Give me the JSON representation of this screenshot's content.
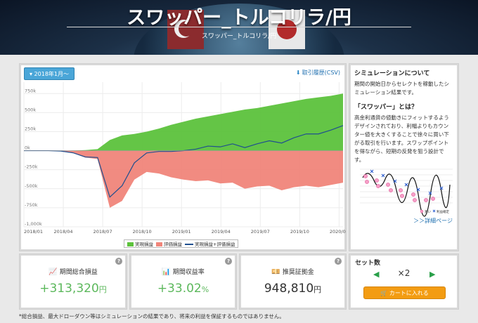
{
  "header": {
    "title": "スワッパー_トルコリラ/円",
    "subtitle": "スワッパー_トルコリラ/円"
  },
  "chart_panel": {
    "period_button": "2018年1月〜",
    "csv_link": "取引履歴(CSV)"
  },
  "chart_data": {
    "type": "area",
    "title": "",
    "y_ticks": [
      "750k",
      "500k",
      "250k",
      "0k",
      "-250k",
      "-500k",
      "-750k",
      "-1,000k"
    ],
    "x_ticks": [
      "2018/01",
      "2018/04",
      "2018/07",
      "2018/10",
      "2019/01",
      "2019/04",
      "2019/07",
      "2019/10",
      "2020/01"
    ],
    "ylim": [
      -1000000,
      900000
    ],
    "x": [
      "2018/01",
      "2018/02",
      "2018/03",
      "2018/04",
      "2018/05",
      "2018/06",
      "2018/07",
      "2018/08",
      "2018/08",
      "2018/09",
      "2018/10",
      "2018/11",
      "2018/12",
      "2019/01",
      "2019/02",
      "2019/03",
      "2019/04",
      "2019/05",
      "2019/06",
      "2019/07",
      "2019/08",
      "2019/09",
      "2019/10",
      "2019/11",
      "2019/12",
      "2020/01",
      "2020/02"
    ],
    "series": [
      {
        "name": "実現損益",
        "color": "#5cc23c",
        "values": [
          0,
          0,
          0,
          0,
          2000,
          8000,
          20000,
          140000,
          200000,
          220000,
          250000,
          290000,
          340000,
          380000,
          420000,
          450000,
          480000,
          510000,
          540000,
          560000,
          590000,
          620000,
          650000,
          680000,
          700000,
          720000,
          750000
        ]
      },
      {
        "name": "評価損益",
        "color": "#f0857a",
        "values": [
          0,
          0,
          0,
          -5000,
          -30000,
          -90000,
          -110000,
          -750000,
          -660000,
          -380000,
          -280000,
          -300000,
          -350000,
          -380000,
          -400000,
          -390000,
          -430000,
          -420000,
          -500000,
          -470000,
          -460000,
          -520000,
          -480000,
          -460000,
          -480000,
          -450000,
          -420000
        ]
      },
      {
        "name": "実現損益+評価損益",
        "color": "#1f4f8f",
        "values": [
          0,
          0,
          0,
          -5000,
          -28000,
          -82000,
          -90000,
          -610000,
          -460000,
          -160000,
          -30000,
          -10000,
          -10000,
          0,
          20000,
          60000,
          50000,
          90000,
          40000,
          90000,
          130000,
          100000,
          170000,
          220000,
          220000,
          270000,
          330000
        ]
      }
    ]
  },
  "info": {
    "title": "シミュレーションについて",
    "text": "期間の開始日からセレクトを稼動したシミュレーション結果です。",
    "sub_title": "「スワッパー」とは？",
    "sub_text": "高金利通貨の値動きにフィットするようデザインされており、利幅よりもカウンター値を大きくすることで徐々に買い下がる取引を行います。スワップポイントを得ながら、短期の反発を狙う設計です。",
    "mini_legend_buy": "買い",
    "mini_legend_sell": "利益確定",
    "detail_link": "＞＞詳細ページ"
  },
  "stats": [
    {
      "label": "期間総合損益",
      "value": "+313,320",
      "unit": "円"
    },
    {
      "label": "期間収益率",
      "value": "+33.02",
      "unit": "%"
    },
    {
      "label": "推奨証拠金",
      "value": "948,810",
      "unit": "円"
    }
  ],
  "set": {
    "title": "セット数",
    "quantity": "×2",
    "cart_button": "カートに入れる"
  },
  "footnote": "*総合損益、最大ドローダウン等はシミュレーションの結果であり、将来の利益を保証するものではありません。",
  "colors": {
    "accent": "#4aa6d8",
    "positive": "#5cb85c",
    "cart": "#f39c12",
    "navy": "#1f4f8f"
  }
}
